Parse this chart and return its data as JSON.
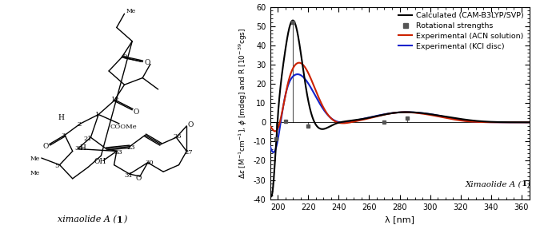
{
  "xlim": [
    195,
    365
  ],
  "ylim": [
    -40,
    60
  ],
  "yticks": [
    -40,
    -30,
    -20,
    -10,
    0,
    10,
    20,
    30,
    40,
    50,
    60
  ],
  "xticks": [
    200,
    220,
    240,
    260,
    280,
    300,
    320,
    340,
    360
  ],
  "bg_color": "#ffffff",
  "line_black_color": "#000000",
  "line_red_color": "#cc2200",
  "line_blue_color": "#1122cc",
  "xlabel": "λ [nm]",
  "rot_sticks_x": [
    199,
    205,
    210,
    220,
    270,
    285
  ],
  "rot_sticks_y": [
    -8.5,
    0.5,
    52,
    -2,
    0,
    2
  ],
  "legend_labels": [
    "Calculated (CAM-B3LYP/SVP)",
    "Rotational strengths",
    "Experimental (ACN solution)",
    "Experimental (KCl disc)"
  ],
  "annotation": "Ximaolide A (1)",
  "figure_width": 6.75,
  "figure_height": 2.87
}
